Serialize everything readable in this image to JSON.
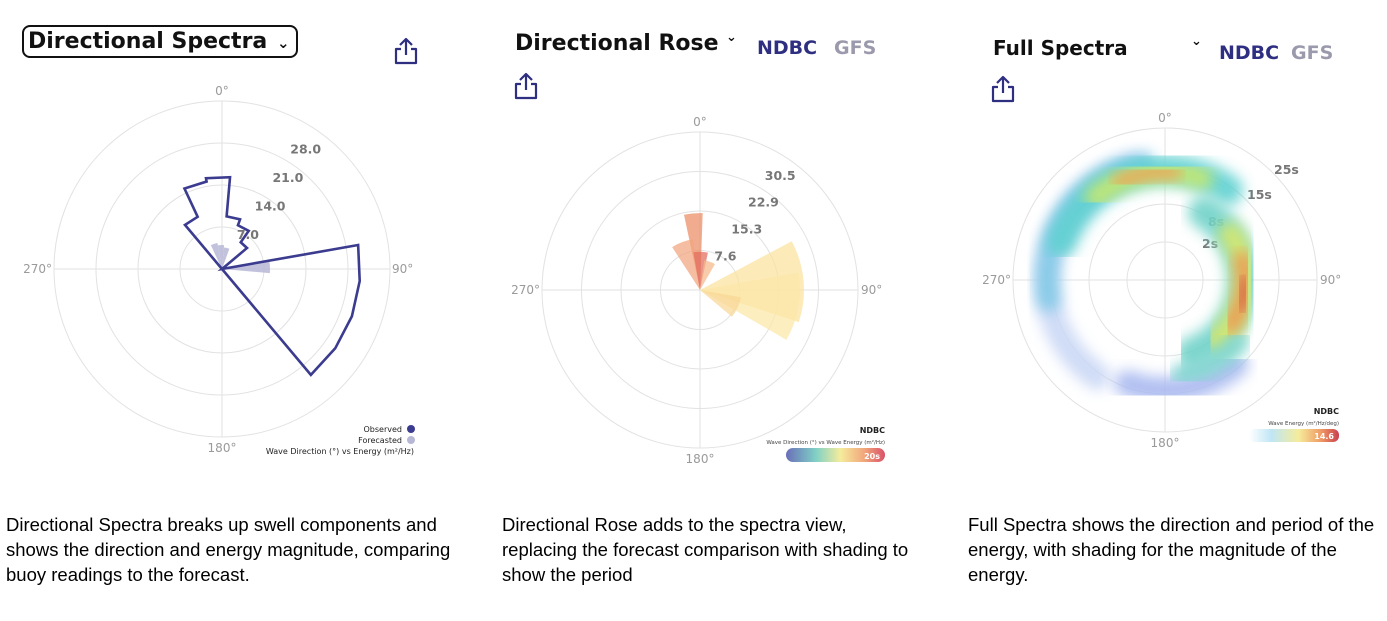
{
  "panel1": {
    "title": "Directional Spectra",
    "chevron": "⌄",
    "share_icon": "share-icon",
    "polar": {
      "angle_labels": [
        "0°",
        "90°",
        "180°",
        "270°"
      ],
      "ring_labels": [
        "7.0",
        "14.0",
        "21.0",
        "28.0"
      ]
    },
    "legend": {
      "observed": "Observed",
      "forecasted": "Forecasted",
      "caption": "Wave Direction (°) vs Energy (m²/Hz)"
    },
    "colors": {
      "observed": "#3b3b8f",
      "forecasted": "#b7b7d6"
    },
    "caption": "Directional Spectra breaks up swell components and shows the direction and energy magnitude, comparing buoy readings to the forecast.",
    "chart_data": {
      "type": "polar-bar",
      "rmax": 35,
      "ring_values": [
        7,
        14,
        21,
        28
      ],
      "series": [
        {
          "name": "Observed",
          "directions_deg": [
            -32.5,
            -17.5,
            -2.5,
            12.5,
            27.5,
            42.5,
            57.5,
            72.5,
            87.5,
            102.5,
            117.5,
            132.5
          ],
          "values": [
            12,
            18.5,
            19.2,
            11,
            9.7,
            6.8,
            0,
            0,
            28.8,
            28.8,
            28.8,
            28.8
          ]
        },
        {
          "name": "Forecasted",
          "directions_deg": [
            -17.5,
            -2.5,
            12.5,
            87.5
          ],
          "values": [
            5.5,
            5,
            4.5,
            10
          ]
        }
      ]
    }
  },
  "panel2": {
    "title": "Directional Rose",
    "chevron": "⌄",
    "source_active": "NDBC",
    "source_inactive": "GFS",
    "share_icon": "share-icon",
    "polar": {
      "angle_labels": [
        "0°",
        "90°",
        "180°",
        "270°"
      ],
      "ring_labels": [
        "7.6",
        "15.3",
        "22.9",
        "30.5"
      ]
    },
    "legend": {
      "title": "NDBC",
      "subtitle": "Wave Direction (°) vs Wave Energy (m²/Hz)",
      "max_label": "20s"
    },
    "caption": "Directional Rose adds to the spectra view, replacing the forecast comparison with shading to show the period",
    "chart_data": {
      "type": "polar-bar",
      "rmax": 38,
      "ring_values": [
        7.6,
        15.3,
        22.9,
        30.5
      ],
      "wedges": [
        {
          "from_deg": -12,
          "to_deg": 2,
          "value": 18.5,
          "color": "#ec8a62"
        },
        {
          "from_deg": -33,
          "to_deg": -8,
          "value": 12.3,
          "color": "#f1a57e"
        },
        {
          "from_deg": -10,
          "to_deg": 12,
          "value": 9.2,
          "color": "#e26b5b"
        },
        {
          "from_deg": 8,
          "to_deg": 30,
          "value": 7.2,
          "color": "#f5b98a"
        },
        {
          "from_deg": 62,
          "to_deg": 108,
          "value": 25,
          "color": "#fbe29c"
        },
        {
          "from_deg": 80,
          "to_deg": 120,
          "value": 24,
          "color": "#fce8a8"
        },
        {
          "from_deg": 100,
          "to_deg": 130,
          "value": 10,
          "color": "#f8d795"
        }
      ]
    }
  },
  "panel3": {
    "title": "Full Spectra",
    "chevron": "⌄",
    "source_active": "NDBC",
    "source_inactive": "GFS",
    "share_icon": "share-icon",
    "polar": {
      "angle_labels": [
        "0°",
        "90°",
        "180°",
        "270°"
      ],
      "ring_labels": [
        "2s",
        "8s",
        "15s",
        "25s"
      ]
    },
    "legend": {
      "title": "NDBC",
      "subtitle": "Wave Energy (m²/Hz/deg)",
      "max_label": "14.6"
    },
    "caption": "Full Spectra shows the direction and period of the energy, with shading for the magnitude of the energy."
  }
}
